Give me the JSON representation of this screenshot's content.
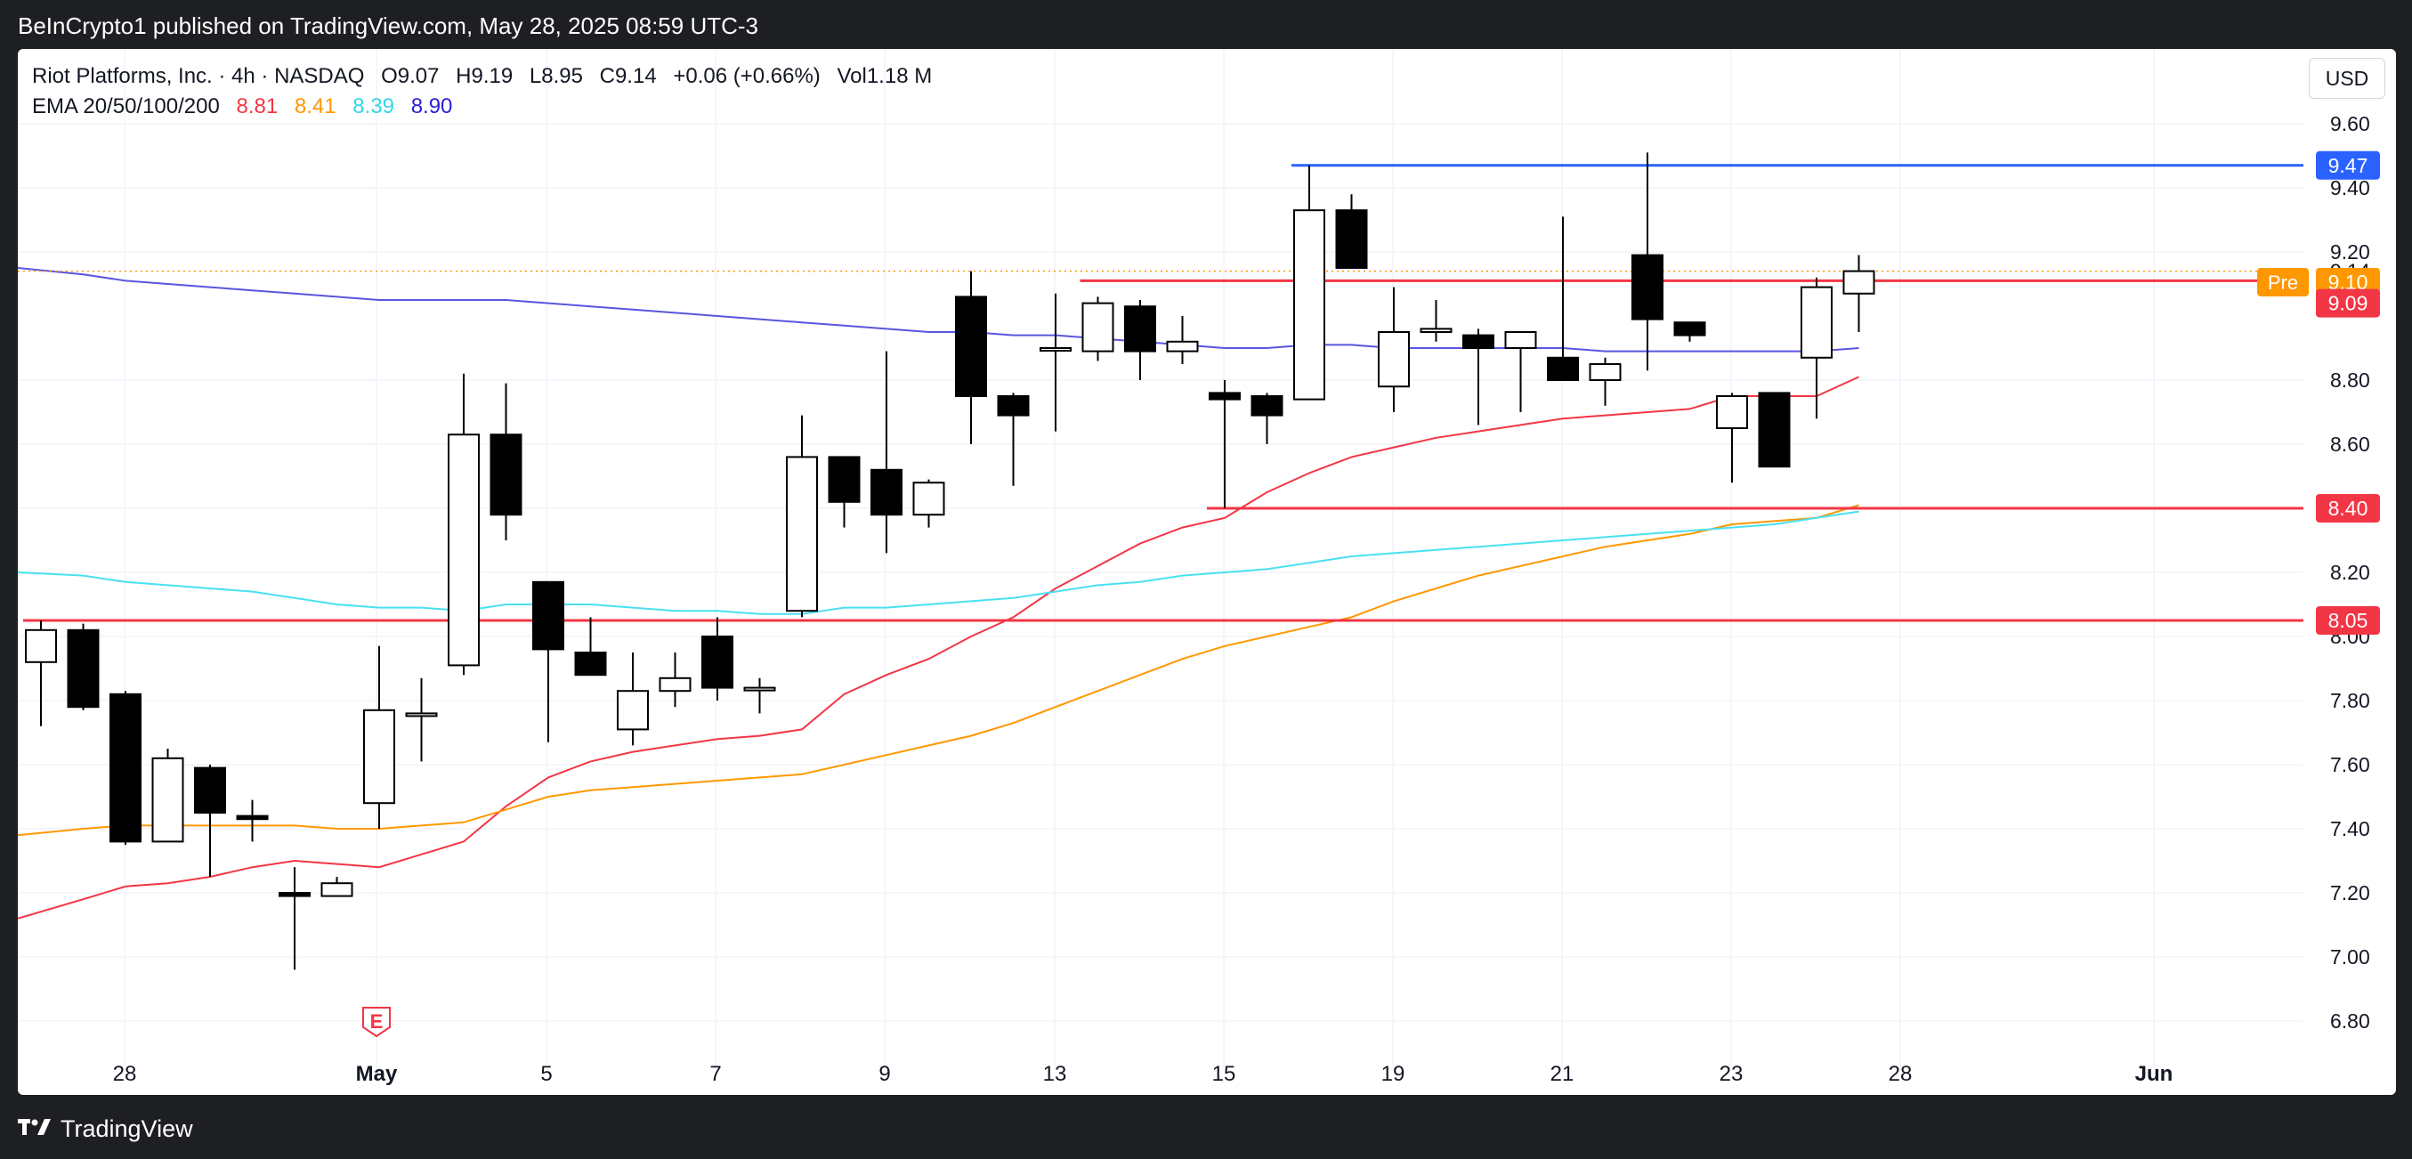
{
  "header": {
    "publisher_line": "BeInCrypto1 published on TradingView.com, May 28, 2025 08:59 UTC-3"
  },
  "legend": {
    "symbol": "Riot Platforms, Inc. · 4h · NASDAQ",
    "open": "O9.07",
    "high": "H9.19",
    "low": "L8.95",
    "close": "C9.14",
    "change": "+0.06 (+0.66%)",
    "volume": "Vol1.18 M",
    "ema_label": "EMA 20/50/100/200",
    "ema20": "8.81",
    "ema50": "8.41",
    "ema100": "8.39",
    "ema200": "8.90"
  },
  "currency_button": "USD",
  "footer": {
    "brand": "TradingView",
    "logo_icon": "tradingview-logo-icon"
  },
  "colors": {
    "ema20": "#f23645",
    "ema50": "#ff9800",
    "ema100": "#4ae0f0",
    "ema200": "#5a55e0",
    "resistance": "#2962ff",
    "level": "#f23645",
    "candle_up": "#ffffff",
    "candle_down": "#000000"
  },
  "chart_data": {
    "type": "candlestick",
    "y_range": [
      6.7,
      9.7
    ],
    "y_ticks": [
      "9.60",
      "9.40",
      "9.20",
      "8.80",
      "8.60",
      "8.40",
      "8.20",
      "8.00",
      "7.80",
      "7.60",
      "7.40",
      "7.20",
      "7.00",
      "6.80"
    ],
    "x_ticks": [
      "28",
      "May",
      "5",
      "7",
      "9",
      "13",
      "15",
      "19",
      "21",
      "23",
      "28",
      "Jun"
    ],
    "earnings_marker": "E",
    "candles": [
      {
        "o": 7.92,
        "h": 8.05,
        "l": 7.72,
        "c": 8.02
      },
      {
        "o": 8.02,
        "h": 8.04,
        "l": 7.77,
        "c": 7.78
      },
      {
        "o": 7.82,
        "h": 7.83,
        "l": 7.35,
        "c": 7.36
      },
      {
        "o": 7.36,
        "h": 7.65,
        "l": 7.36,
        "c": 7.62
      },
      {
        "o": 7.59,
        "h": 7.6,
        "l": 7.25,
        "c": 7.45
      },
      {
        "o": 7.44,
        "h": 7.49,
        "l": 7.36,
        "c": 7.43
      },
      {
        "o": 7.2,
        "h": 7.28,
        "l": 6.96,
        "c": 7.19
      },
      {
        "o": 7.19,
        "h": 7.25,
        "l": 7.19,
        "c": 7.23
      },
      {
        "o": 7.48,
        "h": 7.97,
        "l": 7.4,
        "c": 7.77
      },
      {
        "o": 7.76,
        "h": 7.87,
        "l": 7.61,
        "c": 7.76
      },
      {
        "o": 7.91,
        "h": 8.82,
        "l": 7.88,
        "c": 8.63
      },
      {
        "o": 8.63,
        "h": 8.79,
        "l": 8.3,
        "c": 8.38
      },
      {
        "o": 8.17,
        "h": 8.17,
        "l": 7.67,
        "c": 7.96
      },
      {
        "o": 7.95,
        "h": 8.06,
        "l": 7.88,
        "c": 7.88
      },
      {
        "o": 7.71,
        "h": 7.95,
        "l": 7.66,
        "c": 7.83
      },
      {
        "o": 7.83,
        "h": 7.95,
        "l": 7.78,
        "c": 7.87
      },
      {
        "o": 8.0,
        "h": 8.06,
        "l": 7.8,
        "c": 7.84
      },
      {
        "o": 7.84,
        "h": 7.87,
        "l": 7.76,
        "c": 7.84
      },
      {
        "o": 8.08,
        "h": 8.69,
        "l": 8.06,
        "c": 8.56
      },
      {
        "o": 8.56,
        "h": 8.56,
        "l": 8.34,
        "c": 8.42
      },
      {
        "o": 8.52,
        "h": 8.89,
        "l": 8.26,
        "c": 8.38
      },
      {
        "o": 8.38,
        "h": 8.49,
        "l": 8.34,
        "c": 8.48
      },
      {
        "o": 9.06,
        "h": 9.14,
        "l": 8.6,
        "c": 8.75
      },
      {
        "o": 8.75,
        "h": 8.76,
        "l": 8.47,
        "c": 8.69
      },
      {
        "o": 8.9,
        "h": 9.07,
        "l": 8.64,
        "c": 8.9
      },
      {
        "o": 8.89,
        "h": 9.06,
        "l": 8.86,
        "c": 9.04
      },
      {
        "o": 9.03,
        "h": 9.05,
        "l": 8.8,
        "c": 8.89
      },
      {
        "o": 8.89,
        "h": 9.0,
        "l": 8.85,
        "c": 8.92
      },
      {
        "o": 8.76,
        "h": 8.8,
        "l": 8.4,
        "c": 8.74
      },
      {
        "o": 8.75,
        "h": 8.76,
        "l": 8.6,
        "c": 8.69
      },
      {
        "o": 8.74,
        "h": 9.47,
        "l": 8.74,
        "c": 9.33
      },
      {
        "o": 9.33,
        "h": 9.38,
        "l": 9.15,
        "c": 9.15
      },
      {
        "o": 8.78,
        "h": 9.09,
        "l": 8.7,
        "c": 8.95
      },
      {
        "o": 8.95,
        "h": 9.05,
        "l": 8.92,
        "c": 8.96
      },
      {
        "o": 8.94,
        "h": 8.96,
        "l": 8.66,
        "c": 8.9
      },
      {
        "o": 8.9,
        "h": 8.95,
        "l": 8.7,
        "c": 8.95
      },
      {
        "o": 8.87,
        "h": 9.31,
        "l": 8.8,
        "c": 8.8
      },
      {
        "o": 8.8,
        "h": 8.87,
        "l": 8.72,
        "c": 8.85
      },
      {
        "o": 9.19,
        "h": 9.51,
        "l": 8.83,
        "c": 8.99
      },
      {
        "o": 8.98,
        "h": 8.98,
        "l": 8.92,
        "c": 8.94
      },
      {
        "o": 8.65,
        "h": 8.76,
        "l": 8.48,
        "c": 8.75
      },
      {
        "o": 8.76,
        "h": 8.76,
        "l": 8.53,
        "c": 8.53
      },
      {
        "o": 8.87,
        "h": 9.12,
        "l": 8.68,
        "c": 9.09
      },
      {
        "o": 9.07,
        "h": 9.19,
        "l": 8.95,
        "c": 9.14
      }
    ],
    "ema_series": [
      {
        "name": "EMA 20",
        "color": "#f23645",
        "values": [
          7.12,
          7.18,
          7.22,
          7.23,
          7.25,
          7.28,
          7.3,
          7.29,
          7.28,
          7.32,
          7.36,
          7.47,
          7.56,
          7.61,
          7.64,
          7.66,
          7.68,
          7.69,
          7.71,
          7.82,
          7.88,
          7.93,
          8.0,
          8.06,
          8.15,
          8.22,
          8.29,
          8.34,
          8.37,
          8.45,
          8.51,
          8.56,
          8.59,
          8.62,
          8.64,
          8.66,
          8.68,
          8.69,
          8.7,
          8.71,
          8.75,
          8.75,
          8.75,
          8.81
        ]
      },
      {
        "name": "EMA 50",
        "color": "#ff9800",
        "values": [
          7.38,
          7.4,
          7.41,
          7.41,
          7.41,
          7.41,
          7.41,
          7.4,
          7.4,
          7.41,
          7.42,
          7.46,
          7.5,
          7.52,
          7.53,
          7.54,
          7.55,
          7.56,
          7.57,
          7.6,
          7.63,
          7.66,
          7.69,
          7.73,
          7.78,
          7.83,
          7.88,
          7.93,
          7.97,
          8.0,
          8.03,
          8.06,
          8.11,
          8.15,
          8.19,
          8.22,
          8.25,
          8.28,
          8.3,
          8.32,
          8.35,
          8.36,
          8.37,
          8.41
        ]
      },
      {
        "name": "EMA 100",
        "color": "#4ae0f0",
        "values": [
          8.2,
          8.19,
          8.17,
          8.16,
          8.15,
          8.14,
          8.12,
          8.1,
          8.09,
          8.09,
          8.08,
          8.1,
          8.1,
          8.1,
          8.09,
          8.08,
          8.08,
          8.07,
          8.07,
          8.09,
          8.09,
          8.1,
          8.11,
          8.12,
          8.14,
          8.16,
          8.17,
          8.19,
          8.2,
          8.21,
          8.23,
          8.25,
          8.26,
          8.27,
          8.28,
          8.29,
          8.3,
          8.31,
          8.32,
          8.33,
          8.34,
          8.35,
          8.37,
          8.39
        ]
      },
      {
        "name": "EMA 200",
        "color": "#5a55e0",
        "values": [
          9.15,
          9.13,
          9.11,
          9.1,
          9.09,
          9.08,
          9.07,
          9.06,
          9.05,
          9.05,
          9.05,
          9.05,
          9.04,
          9.03,
          9.02,
          9.01,
          9.0,
          8.99,
          8.98,
          8.97,
          8.96,
          8.95,
          8.95,
          8.94,
          8.94,
          8.93,
          8.92,
          8.91,
          8.9,
          8.9,
          8.91,
          8.91,
          8.9,
          8.9,
          8.9,
          8.9,
          8.9,
          8.89,
          8.89,
          8.89,
          8.89,
          8.89,
          8.89,
          8.9
        ]
      }
    ],
    "levels": [
      {
        "value": 9.47,
        "label": "9.47",
        "color": "#2962ff",
        "start_index": 30
      },
      {
        "value": 9.11,
        "label": "",
        "color": "#f23645",
        "start_index": 25
      },
      {
        "value": 8.4,
        "label": "8.40",
        "color": "#f23645",
        "start_index": 28
      },
      {
        "value": 8.05,
        "label": "8.05",
        "color": "#f23645",
        "start_index": 0
      }
    ],
    "price_tags": [
      {
        "value": 9.14,
        "label": "9.14",
        "style": "plain"
      },
      {
        "value": 9.1,
        "label": "9.10",
        "prefix": "Pre",
        "color": "#ff9800"
      },
      {
        "value": 9.09,
        "label": "9.09",
        "color": "#f23645"
      }
    ]
  }
}
